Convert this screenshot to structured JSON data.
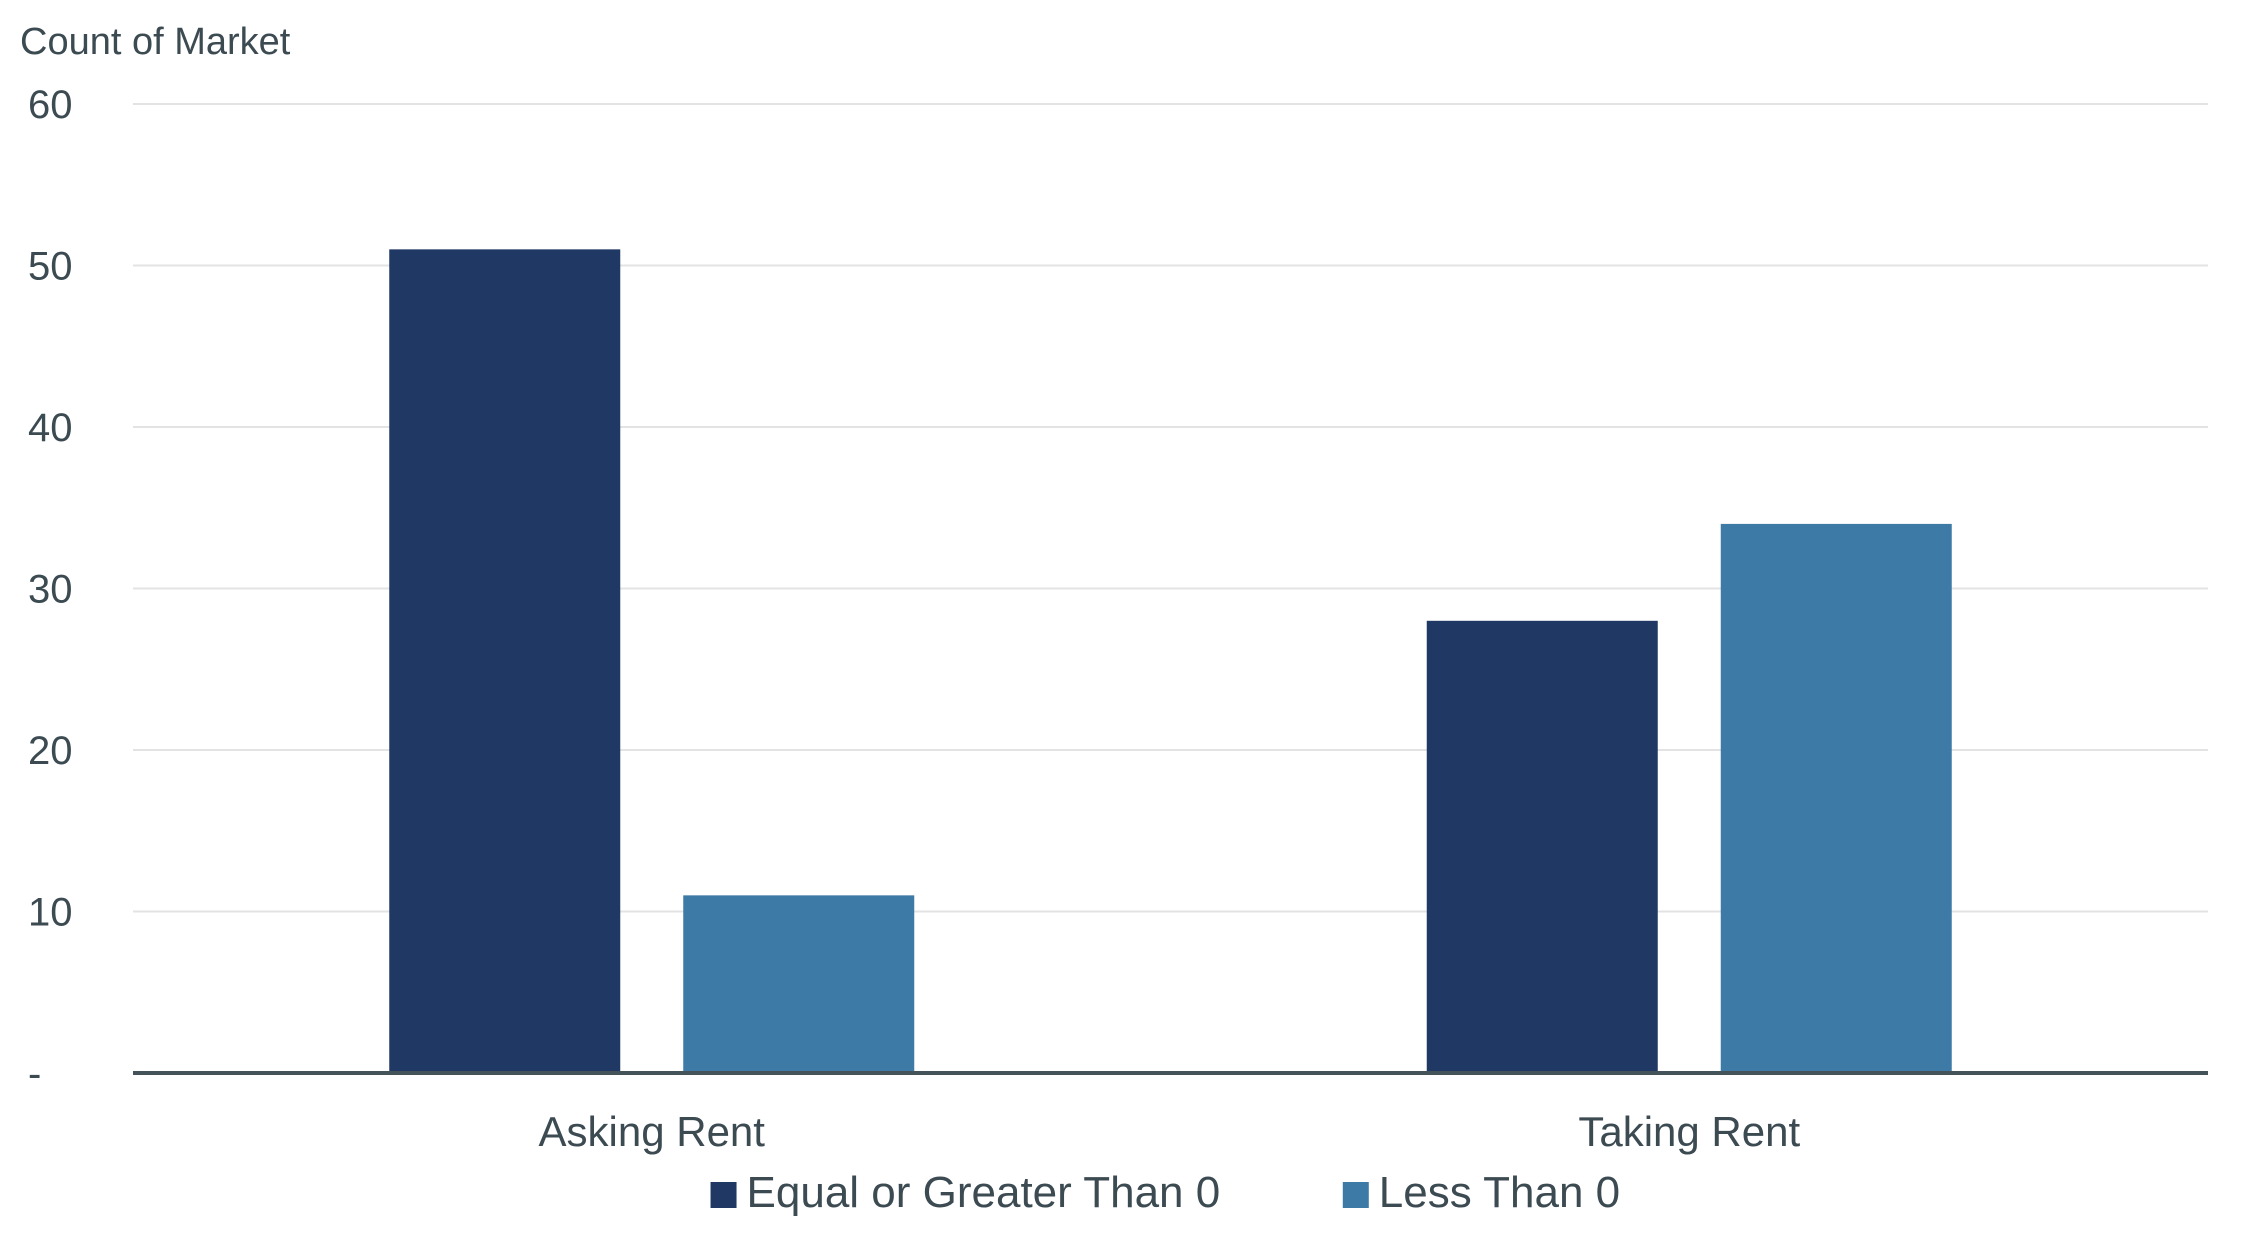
{
  "chart_data": {
    "type": "bar",
    "title": "",
    "ylabel": "Count of Market",
    "xlabel": "",
    "categories": [
      "Asking Rent",
      "Taking Rent"
    ],
    "series": [
      {
        "name": "Equal or Greater Than 0",
        "values": [
          51,
          28
        ],
        "color": "#203864"
      },
      {
        "name": "Less Than 0",
        "values": [
          11,
          34
        ],
        "color": "#3d7aa5"
      }
    ],
    "ylim": [
      0,
      60
    ],
    "yticks": [
      0,
      10,
      20,
      30,
      40,
      50,
      60
    ],
    "ytick_labels": [
      "-",
      "10",
      "20",
      "30",
      "40",
      "50",
      "60"
    ],
    "grid": true,
    "legend": "bottom-center",
    "colors": {
      "axis": "#44525a",
      "grid": "#e3e3e3",
      "text": "#3c4a52"
    }
  }
}
